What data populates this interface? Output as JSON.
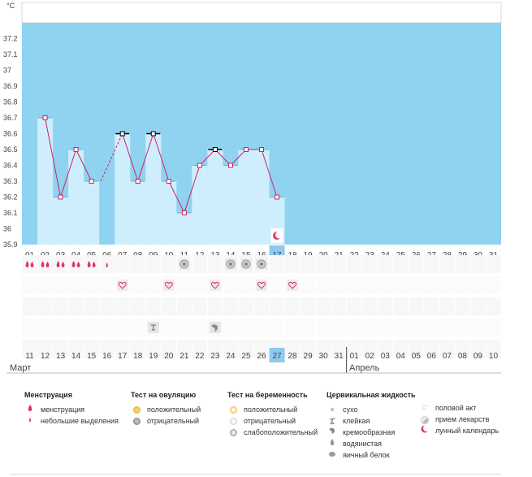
{
  "chart_data": {
    "type": "bar",
    "unit_label": "°C",
    "y_ticks": [
      "37.2",
      "37.1",
      "37",
      "36.9",
      "36.8",
      "36.7",
      "36.6",
      "36.5",
      "36.4",
      "36.3",
      "36.2",
      "36.1",
      "36",
      "35.9"
    ],
    "ylim": [
      35.9,
      37.3
    ],
    "top_days": [
      "01",
      "02",
      "03",
      "04",
      "05",
      "06",
      "07",
      "08",
      "09",
      "10",
      "11",
      "12",
      "13",
      "14",
      "15",
      "16",
      "17",
      "18",
      "19",
      "20",
      "21",
      "22",
      "23",
      "24",
      "25",
      "26",
      "27",
      "28",
      "29",
      "30",
      "31"
    ],
    "bottom_days": [
      "11",
      "12",
      "13",
      "14",
      "15",
      "16",
      "17",
      "18",
      "19",
      "20",
      "21",
      "22",
      "23",
      "24",
      "25",
      "26",
      "27",
      "28",
      "29",
      "30",
      "31",
      "01",
      "02",
      "03",
      "04",
      "05",
      "06",
      "07",
      "08",
      "09",
      "10"
    ],
    "bottom_day_colors": [
      "#444",
      "#444",
      "#444",
      "#444",
      "#cc2255",
      "#cc2255",
      "#444",
      "#444",
      "#444",
      "#444",
      "#444",
      "#cc2255",
      "#cc2255",
      "#444",
      "#444",
      "#444",
      "#444",
      "#444",
      "#cc2255",
      "#cc2255",
      "#444",
      "#444",
      "#444",
      "#444",
      "#444",
      "#cc2255",
      "#cc2255",
      "#444",
      "#444",
      "#444",
      "#444"
    ],
    "temperatures": [
      null,
      36.7,
      36.2,
      36.5,
      36.3,
      null,
      36.6,
      36.3,
      36.6,
      36.3,
      36.1,
      36.4,
      36.5,
      36.4,
      36.5,
      36.5,
      36.2,
      null,
      null,
      null,
      null,
      null,
      null,
      null,
      null,
      null,
      null,
      null,
      null,
      null,
      null
    ],
    "highlighted_day_index": 16,
    "marked_point_indices": [
      6,
      8,
      12
    ],
    "dashed_segment": [
      4,
      6
    ],
    "moon_day_index": 16,
    "month_start": "Март",
    "month_next": "Апрель",
    "month_split_index": 21
  },
  "symbols": {
    "menstruation": [
      1,
      2,
      3,
      4,
      5
    ],
    "small_spotting": [
      6
    ],
    "ovulation_negative": [
      11,
      14,
      15,
      16
    ],
    "intercourse": [
      7,
      10,
      13,
      16,
      18
    ],
    "sticky": [
      9
    ],
    "creamy": [
      13
    ]
  },
  "legend": {
    "menstruation": {
      "title": "Менструация",
      "items": [
        "менструация",
        "небольшие выделения"
      ]
    },
    "ovulation_test": {
      "title": "Тест на овуляцию",
      "items": [
        "положительный",
        "отрицательный"
      ]
    },
    "pregnancy_test": {
      "title": "Тест на беременность",
      "items": [
        "положительный",
        "отрицательный",
        "слабоположительный"
      ]
    },
    "cervical": {
      "title": "Цервикальная жидкость",
      "items": [
        "сухо",
        "клейкая",
        "кремообразная",
        "водянистая",
        "яичный белок"
      ]
    },
    "other": {
      "items": [
        "половой акт",
        "прием лекарств",
        "лунный календарь"
      ]
    }
  },
  "colors": {
    "sky": "#8fd3f0",
    "bar": "#cfeefd",
    "line": "#cc2266",
    "highlight": "#8ccbee",
    "pink": "#e0336b"
  }
}
